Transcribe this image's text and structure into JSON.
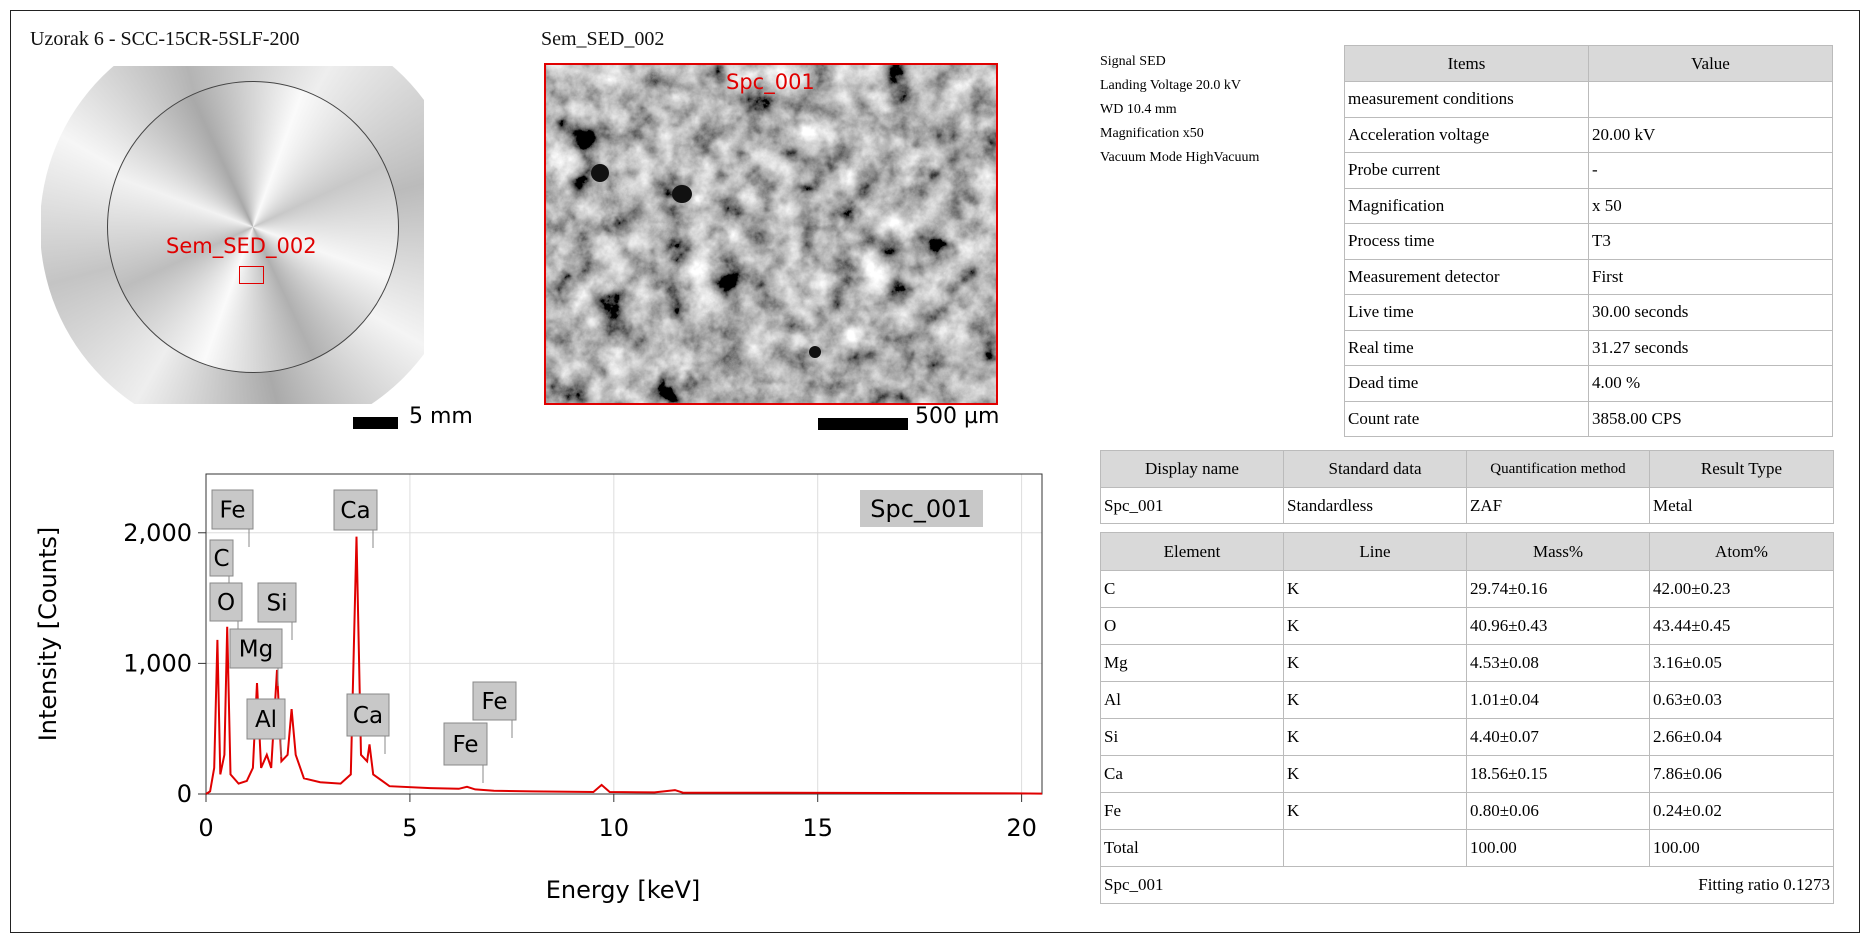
{
  "overview": {
    "title": "Uzorak 6 - SCC-15CR-5SLF-200",
    "marker": "Sem_SED_002",
    "scale": "5 mm"
  },
  "sem_image": {
    "title": "Sem_SED_002",
    "marker": "Spc_001",
    "scale": "500 µm"
  },
  "conditions": [
    "Signal SED",
    "Landing Voltage 20.0 kV",
    "WD 10.4 mm",
    "Magnification x50",
    "Vacuum Mode HighVacuum"
  ],
  "conditions_table": {
    "header": [
      "Items",
      "Value"
    ],
    "rows": [
      [
        "measurement conditions"
      ],
      [
        "Acceleration voltage",
        "20.00 kV"
      ],
      [
        "Probe current",
        "-"
      ],
      [
        "Magnification",
        "x 50"
      ],
      [
        "Process time",
        "T3"
      ],
      [
        "Measurement detector",
        "First"
      ],
      [
        "Live time",
        "30.00 seconds"
      ],
      [
        "Real time",
        "31.27 seconds"
      ],
      [
        "Dead time",
        "4.00 %"
      ],
      [
        "Count rate",
        "3858.00 CPS"
      ]
    ]
  },
  "spectrum_table": {
    "header": [
      "Display name",
      "Standard data",
      "Quantification method",
      "Result Type"
    ],
    "rows": [
      [
        "Spc_001",
        "Standardless",
        "ZAF",
        "Metal"
      ]
    ]
  },
  "results_table": {
    "header": [
      "Element",
      "Line",
      "Mass%",
      "Atom%"
    ],
    "rows": [
      [
        "C",
        "K",
        "29.74±0.16",
        "42.00±0.23"
      ],
      [
        "O",
        "K",
        "40.96±0.43",
        "43.44±0.45"
      ],
      [
        "Mg",
        "K",
        "4.53±0.08",
        "3.16±0.05"
      ],
      [
        "Al",
        "K",
        "1.01±0.04",
        "0.63±0.03"
      ],
      [
        "Si",
        "K",
        "4.40±0.07",
        "2.66±0.04"
      ],
      [
        "Ca",
        "K",
        "18.56±0.15",
        "7.86±0.06"
      ],
      [
        "Fe",
        "K",
        "0.80±0.06",
        "0.24±0.02"
      ],
      [
        "Total",
        null,
        "100.00",
        "100.00"
      ]
    ],
    "footer": {
      "name": "Spc_001",
      "fitting": "Fitting ratio 0.1273"
    }
  },
  "chart_data": {
    "type": "line",
    "x_label": "Energy [keV]",
    "y_label": "Intensity [Counts]",
    "x": [
      0,
      0.1,
      0.2,
      0.28,
      0.35,
      0.45,
      0.52,
      0.6,
      0.8,
      1.0,
      1.15,
      1.25,
      1.35,
      1.49,
      1.6,
      1.74,
      1.85,
      2.0,
      2.1,
      2.2,
      2.4,
      2.8,
      3.3,
      3.55,
      3.69,
      3.8,
      3.95,
      4.01,
      4.1,
      4.5,
      5.5,
      6.2,
      6.4,
      6.6,
      7.06,
      8,
      9.5,
      9.7,
      9.9,
      11,
      11.5,
      11.7,
      14,
      17,
      19,
      20.5
    ],
    "series": [
      {
        "name": "Spc_001",
        "color": "#e00000",
        "values": [
          0,
          20,
          200,
          1180,
          150,
          300,
          1280,
          150,
          80,
          100,
          200,
          850,
          200,
          300,
          200,
          950,
          250,
          300,
          650,
          300,
          120,
          90,
          80,
          150,
          1970,
          300,
          250,
          380,
          150,
          60,
          45,
          40,
          55,
          35,
          25,
          20,
          15,
          70,
          15,
          12,
          30,
          10,
          10,
          8,
          6,
          3
        ]
      }
    ],
    "annotations": [
      "Fe",
      "C",
      "O",
      "Si",
      "Mg",
      "Ca",
      "Al",
      "Ca",
      "Fe",
      "Fe"
    ],
    "xlim": [
      0,
      20.5
    ],
    "ylim": [
      0,
      2450
    ],
    "xticks": [
      0,
      5,
      10,
      15,
      20
    ],
    "yticks": [
      0,
      {
        "value": 1000,
        "label": "1,000"
      },
      {
        "value": 2000,
        "label": "2,000"
      }
    ],
    "grid": true
  }
}
